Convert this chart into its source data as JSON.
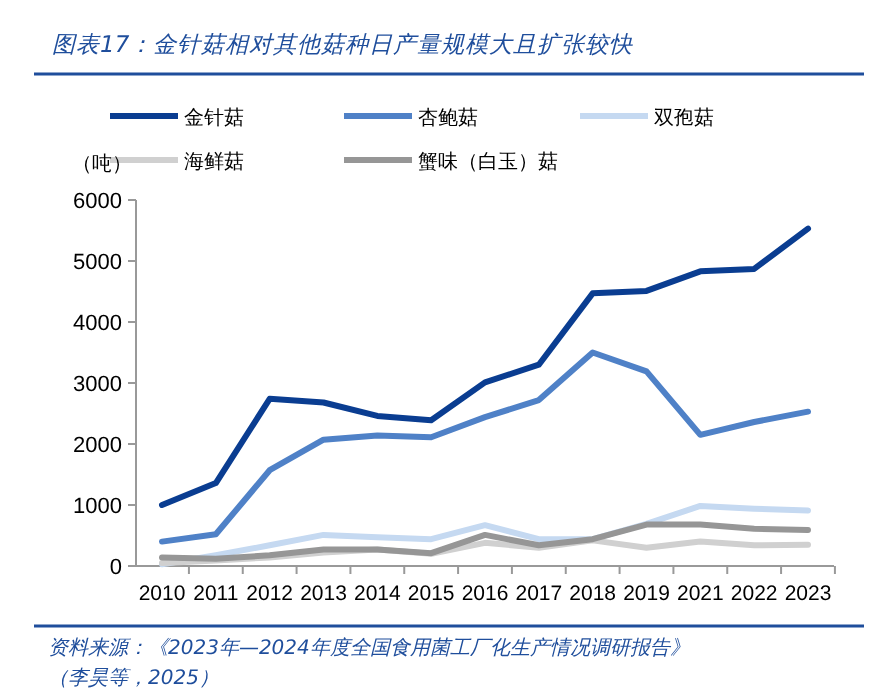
{
  "chart_data": {
    "type": "line",
    "title": "图表17：金针菇相对其他菇种日产量规模大且扩张较快",
    "ylabel": "（吨）",
    "categories": [
      "2010",
      "2011",
      "2012",
      "2013",
      "2014",
      "2015",
      "2016",
      "2017",
      "2018",
      "2019",
      "2021",
      "2022",
      "2023"
    ],
    "series": [
      {
        "name": "金针菇",
        "color": "#0a3d91",
        "values": [
          1000,
          1360,
          2740,
          2680,
          2460,
          2390,
          3010,
          3300,
          4470,
          4510,
          4830,
          4870,
          5530
        ]
      },
      {
        "name": "杏鲍菇",
        "color": "#4f81c7",
        "values": [
          400,
          520,
          1570,
          2070,
          2140,
          2110,
          2440,
          2720,
          3500,
          3190,
          2150,
          2360,
          2530
        ]
      },
      {
        "name": "双孢菇",
        "color": "#c5d9f1",
        "values": [
          30,
          175,
          340,
          510,
          470,
          440,
          670,
          440,
          440,
          690,
          985,
          940,
          910
        ]
      },
      {
        "name": "海鲜菇",
        "color": "#d0d0d0",
        "values": [
          50,
          90,
          140,
          220,
          270,
          200,
          380,
          300,
          420,
          300,
          400,
          340,
          350
        ]
      },
      {
        "name": "蟹味（白玉）菇",
        "color": "#969696",
        "values": [
          140,
          120,
          175,
          270,
          270,
          210,
          510,
          340,
          440,
          680,
          680,
          610,
          590
        ]
      }
    ],
    "ylim": [
      0,
      6000
    ],
    "yticks": [
      0,
      1000,
      2000,
      3000,
      4000,
      5000,
      6000
    ],
    "grid": false,
    "legend": "top",
    "marker": "none",
    "line_style": "solid",
    "annotations": [
      "资料来源：《2023年—2024年度全国食用菌工厂化生产情况调研报告》（李昊等，2025）"
    ]
  }
}
